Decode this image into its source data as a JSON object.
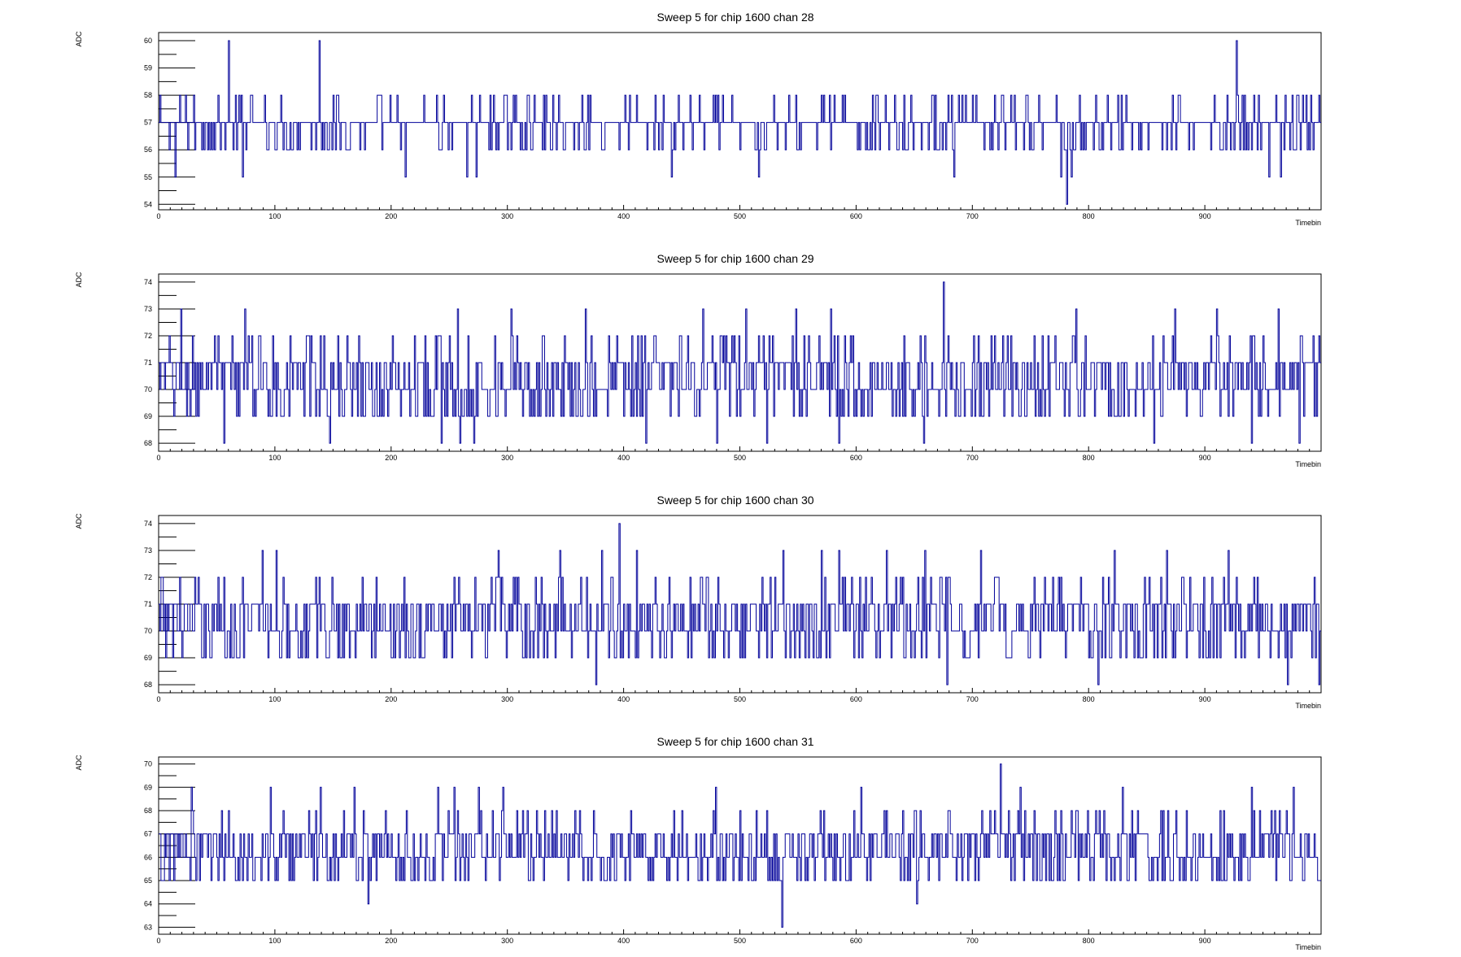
{
  "chart_data": [
    {
      "type": "line",
      "title": "Sweep 5 for chip 1600 chan 28",
      "xlabel": "Timebin",
      "ylabel": "ADC",
      "xlim": [
        0,
        1000
      ],
      "ylim": [
        53.8,
        60.3
      ],
      "xticks": [
        0,
        100,
        200,
        300,
        400,
        500,
        600,
        700,
        800,
        900
      ],
      "yticks": [
        54,
        55,
        56,
        57,
        58,
        59,
        60
      ],
      "grid": false,
      "line_color": "#000099",
      "series": [
        {
          "name": "",
          "baseline": 57,
          "min": 54,
          "max": 60,
          "spikes": [
            [
              60,
              60
            ],
            [
              138,
              60
            ],
            [
              781,
              54
            ],
            [
              927,
              60
            ],
            [
              14,
              55
            ],
            [
              72,
              55
            ],
            [
              212,
              55
            ],
            [
              265,
              55
            ],
            [
              273,
              55
            ],
            [
              441,
              55
            ],
            [
              516,
              55
            ],
            [
              684,
              55
            ],
            [
              776,
              55
            ],
            [
              785,
              55
            ],
            [
              955,
              55
            ],
            [
              965,
              55
            ]
          ]
        }
      ]
    },
    {
      "type": "line",
      "title": "Sweep 5 for chip 1600 chan 29",
      "xlabel": "Timebin",
      "ylabel": "ADC",
      "xlim": [
        0,
        1000
      ],
      "ylim": [
        67.7,
        74.3
      ],
      "xticks": [
        0,
        100,
        200,
        300,
        400,
        500,
        600,
        700,
        800,
        900
      ],
      "yticks": [
        68,
        69,
        70,
        71,
        72,
        73,
        74
      ],
      "grid": false,
      "line_color": "#000099",
      "series": [
        {
          "name": "",
          "baseline": 70.5,
          "min": 68,
          "max": 74,
          "spikes": [
            [
              675,
              74
            ],
            [
              56,
              68
            ],
            [
              147,
              68
            ],
            [
              243,
              68
            ],
            [
              259,
              68
            ],
            [
              271,
              68
            ],
            [
              419,
              68
            ],
            [
              480,
              68
            ],
            [
              523,
              68
            ],
            [
              585,
              68
            ],
            [
              658,
              68
            ],
            [
              856,
              68
            ],
            [
              940,
              68
            ],
            [
              981,
              68
            ],
            [
              19,
              73
            ],
            [
              74,
              73
            ],
            [
              257,
              73
            ],
            [
              303,
              73
            ],
            [
              367,
              73
            ],
            [
              468,
              73
            ],
            [
              505,
              73
            ],
            [
              548,
              73
            ],
            [
              578,
              73
            ],
            [
              789,
              73
            ],
            [
              874,
              73
            ],
            [
              910,
              73
            ],
            [
              963,
              73
            ]
          ]
        }
      ]
    },
    {
      "type": "line",
      "title": "Sweep 5 for chip 1600 chan 30",
      "xlabel": "Timebin",
      "ylabel": "ADC",
      "xlim": [
        0,
        1000
      ],
      "ylim": [
        67.7,
        74.3
      ],
      "xticks": [
        0,
        100,
        200,
        300,
        400,
        500,
        600,
        700,
        800,
        900
      ],
      "yticks": [
        68,
        69,
        70,
        71,
        72,
        73,
        74
      ],
      "grid": false,
      "line_color": "#000099",
      "series": [
        {
          "name": "",
          "baseline": 70.7,
          "min": 68,
          "max": 74,
          "spikes": [
            [
              396,
              74
            ],
            [
              376,
              68
            ],
            [
              537,
              68
            ],
            [
              585,
              68
            ],
            [
              678,
              68
            ],
            [
              808,
              68
            ],
            [
              971,
              68
            ],
            [
              998,
              68
            ],
            [
              89,
              73
            ],
            [
              101,
              73
            ],
            [
              292,
              73
            ],
            [
              345,
              73
            ],
            [
              381,
              73
            ],
            [
              411,
              73
            ],
            [
              537,
              73
            ],
            [
              570,
              73
            ],
            [
              585,
              73
            ],
            [
              626,
              73
            ],
            [
              659,
              73
            ],
            [
              707,
              73
            ],
            [
              822,
              73
            ],
            [
              867,
              73
            ],
            [
              920,
              73
            ]
          ]
        }
      ]
    },
    {
      "type": "line",
      "title": "Sweep 5 for chip 1600 chan 31",
      "xlabel": "Timebin",
      "ylabel": "ADC",
      "xlim": [
        0,
        1000
      ],
      "ylim": [
        62.7,
        70.3
      ],
      "xticks": [
        0,
        100,
        200,
        300,
        400,
        500,
        600,
        700,
        800,
        900
      ],
      "yticks": [
        63,
        64,
        65,
        66,
        67,
        68,
        69,
        70
      ],
      "grid": false,
      "line_color": "#000099",
      "series": [
        {
          "name": "",
          "baseline": 66.6,
          "min": 63,
          "max": 70,
          "spikes": [
            [
              536,
              70
            ],
            [
              724,
              70
            ],
            [
              536,
              63
            ],
            [
              180,
              64
            ],
            [
              652,
              64
            ],
            [
              9,
              65
            ],
            [
              51,
              65
            ],
            [
              102,
              65
            ],
            [
              136,
              65
            ],
            [
              168,
              65
            ],
            [
              234,
              65
            ],
            [
              263,
              65
            ],
            [
              293,
              65
            ],
            [
              318,
              65
            ],
            [
              465,
              65
            ],
            [
              558,
              65
            ],
            [
              638,
              65
            ],
            [
              736,
              65
            ],
            [
              779,
              65
            ],
            [
              822,
              65
            ],
            [
              859,
              65
            ],
            [
              917,
              65
            ],
            [
              985,
              65
            ],
            [
              28,
              69
            ],
            [
              96,
              69
            ],
            [
              139,
              69
            ],
            [
              168,
              69
            ],
            [
              240,
              69
            ],
            [
              254,
              69
            ],
            [
              275,
              69
            ],
            [
              296,
              69
            ],
            [
              479,
              69
            ],
            [
              604,
              69
            ],
            [
              741,
              69
            ],
            [
              829,
              69
            ],
            [
              940,
              69
            ],
            [
              976,
              69
            ]
          ]
        }
      ]
    }
  ]
}
